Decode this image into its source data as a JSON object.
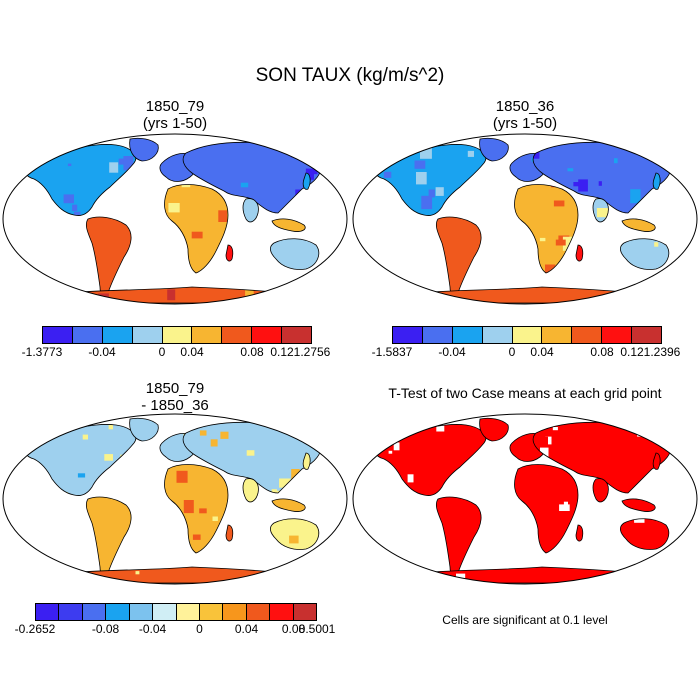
{
  "title": "SON TAUX (kg/m/s^2)",
  "panels": [
    {
      "title_line1": "1850_79",
      "title_line2": "(yrs 1-50)",
      "colorbar": {
        "colors": [
          "#3b1ff2",
          "#4a6ff0",
          "#1aa3f0",
          "#9ed0ee",
          "#faf38c",
          "#f7b531",
          "#f0591d",
          "#ff1010",
          "#c8302f"
        ],
        "labels": [
          "-1.3773",
          "-0.04",
          "0",
          "0.04",
          "0.08",
          "0.12",
          "1.2756"
        ]
      },
      "palette": "blue-dominant"
    },
    {
      "title_line1": "1850_36",
      "title_line2": "(yrs 1-50)",
      "colorbar": {
        "colors": [
          "#3b1ff2",
          "#4a6ff0",
          "#1aa3f0",
          "#9ed0ee",
          "#faf38c",
          "#f7b531",
          "#f0591d",
          "#ff1010",
          "#c8302f"
        ],
        "labels": [
          "-1.5837",
          "-0.04",
          "0",
          "0.04",
          "0.08",
          "0.12",
          "1.2396"
        ]
      },
      "palette": "blue-dominant"
    },
    {
      "title_line1": "1850_79",
      "title_line2": "- 1850_36",
      "colorbar": {
        "colors": [
          "#3b1ff2",
          "#3d3cf0",
          "#4a6ff0",
          "#1aa3f0",
          "#7cc2ee",
          "#d0eef5",
          "#fff29a",
          "#f9c33a",
          "#f7961c",
          "#f0591d",
          "#ff1010",
          "#c8302f"
        ],
        "labels": [
          "-0.2652",
          "-0.08",
          "-0.04",
          "0",
          "0.04",
          "0.08",
          "0.5001"
        ]
      },
      "palette": "mixed"
    },
    {
      "title_line1": "T-Test of two Case means at each grid point",
      "footnote": "Cells are significant at 0.1 level",
      "palette": "red"
    }
  ]
}
